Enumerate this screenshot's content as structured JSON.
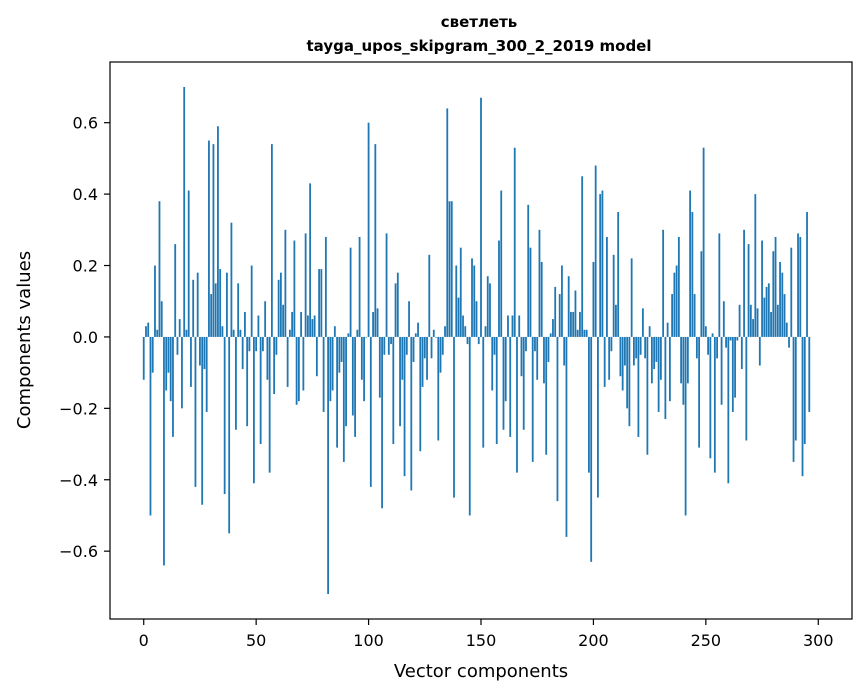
{
  "chart_data": {
    "type": "bar",
    "title_line1": "светлеть",
    "title_line2": "tayga_upos_skipgram_300_2_2019 model",
    "xlabel": "Vector components",
    "ylabel": "Components values",
    "xlim": [
      -15,
      315
    ],
    "ylim": [
      -0.79,
      0.77
    ],
    "xticks": [
      0,
      50,
      100,
      150,
      200,
      250,
      300
    ],
    "xtick_labels": [
      "0",
      "50",
      "100",
      "150",
      "200",
      "250",
      "300"
    ],
    "yticks": [
      -0.6,
      -0.4,
      -0.2,
      0.0,
      0.2,
      0.4,
      0.6
    ],
    "ytick_labels": [
      "−0.6",
      "−0.4",
      "−0.2",
      "0.0",
      "0.2",
      "0.4",
      "0.6"
    ],
    "bar_color": "#1f77b4",
    "grid": false,
    "values": [
      -0.12,
      0.03,
      0.04,
      -0.5,
      -0.1,
      0.2,
      0.02,
      0.38,
      0.1,
      -0.64,
      -0.15,
      -0.1,
      -0.18,
      -0.28,
      0.26,
      -0.05,
      0.05,
      -0.2,
      0.7,
      0.02,
      0.41,
      -0.14,
      0.16,
      -0.42,
      0.18,
      -0.08,
      -0.47,
      -0.09,
      -0.21,
      0.55,
      0.12,
      0.54,
      0.15,
      0.59,
      0.19,
      0.03,
      -0.44,
      0.18,
      -0.55,
      0.32,
      0.02,
      -0.26,
      0.15,
      0.02,
      -0.09,
      0.07,
      -0.25,
      -0.04,
      0.2,
      -0.41,
      -0.04,
      0.06,
      -0.3,
      -0.04,
      0.1,
      -0.12,
      -0.38,
      0.54,
      -0.16,
      -0.05,
      0.16,
      0.18,
      0.09,
      0.3,
      -0.14,
      0.02,
      0.07,
      0.27,
      -0.19,
      -0.18,
      0.07,
      -0.15,
      0.29,
      0.06,
      0.43,
      0.05,
      0.06,
      -0.11,
      0.19,
      0.19,
      -0.21,
      0.28,
      -0.72,
      -0.18,
      -0.15,
      0.03,
      -0.31,
      -0.1,
      -0.07,
      -0.35,
      -0.25,
      0.01,
      0.25,
      -0.22,
      -0.28,
      0.02,
      0.28,
      -0.12,
      -0.18,
      0.0,
      0.6,
      -0.42,
      0.07,
      0.54,
      0.08,
      -0.17,
      -0.48,
      -0.05,
      0.29,
      -0.05,
      -0.02,
      -0.3,
      0.15,
      0.18,
      -0.25,
      -0.12,
      -0.39,
      -0.05,
      0.1,
      -0.43,
      -0.07,
      0.01,
      0.04,
      -0.32,
      -0.14,
      -0.06,
      -0.12,
      0.23,
      -0.06,
      0.02,
      0.0,
      -0.29,
      -0.1,
      -0.05,
      0.03,
      0.64,
      0.38,
      0.38,
      -0.45,
      0.2,
      0.11,
      0.25,
      0.06,
      0.03,
      -0.02,
      -0.5,
      0.22,
      0.2,
      0.1,
      -0.02,
      0.67,
      -0.31,
      0.03,
      0.17,
      0.15,
      -0.15,
      -0.05,
      -0.3,
      0.27,
      0.41,
      -0.26,
      -0.18,
      0.06,
      -0.28,
      0.06,
      0.53,
      -0.38,
      0.06,
      -0.11,
      -0.26,
      -0.04,
      0.37,
      0.25,
      -0.35,
      -0.04,
      -0.12,
      0.3,
      0.21,
      -0.13,
      -0.33,
      -0.07,
      0.01,
      0.05,
      0.14,
      -0.46,
      0.12,
      0.2,
      -0.08,
      -0.56,
      0.17,
      0.07,
      0.07,
      0.13,
      0.02,
      0.07,
      0.45,
      0.02,
      0.02,
      -0.38,
      -0.63,
      0.21,
      0.48,
      -0.45,
      0.4,
      0.41,
      -0.14,
      0.28,
      -0.12,
      -0.04,
      0.23,
      0.09,
      0.35,
      -0.11,
      -0.15,
      -0.08,
      -0.2,
      -0.25,
      0.22,
      -0.08,
      -0.06,
      -0.28,
      -0.05,
      0.08,
      -0.06,
      -0.33,
      0.03,
      -0.13,
      -0.09,
      -0.07,
      -0.21,
      -0.12,
      0.3,
      -0.23,
      0.04,
      -0.18,
      0.12,
      0.18,
      0.2,
      0.28,
      -0.13,
      -0.19,
      -0.5,
      -0.13,
      0.41,
      0.35,
      0.12,
      -0.06,
      -0.31,
      0.24,
      0.53,
      0.03,
      -0.05,
      -0.34,
      0.01,
      -0.38,
      -0.06,
      0.29,
      -0.19,
      0.1,
      -0.03,
      -0.41,
      -0.01,
      -0.21,
      -0.17,
      -0.01,
      0.09,
      -0.09,
      0.3,
      -0.29,
      0.26,
      0.09,
      0.05,
      0.4,
      0.08,
      -0.08,
      0.27,
      0.11,
      0.14,
      0.15,
      0.07,
      0.24,
      0.28,
      0.09,
      0.21,
      0.18,
      0.12,
      0.04,
      -0.03,
      0.25,
      -0.35,
      -0.29,
      0.29,
      0.28,
      -0.39,
      -0.3,
      0.35,
      -0.21
    ]
  }
}
